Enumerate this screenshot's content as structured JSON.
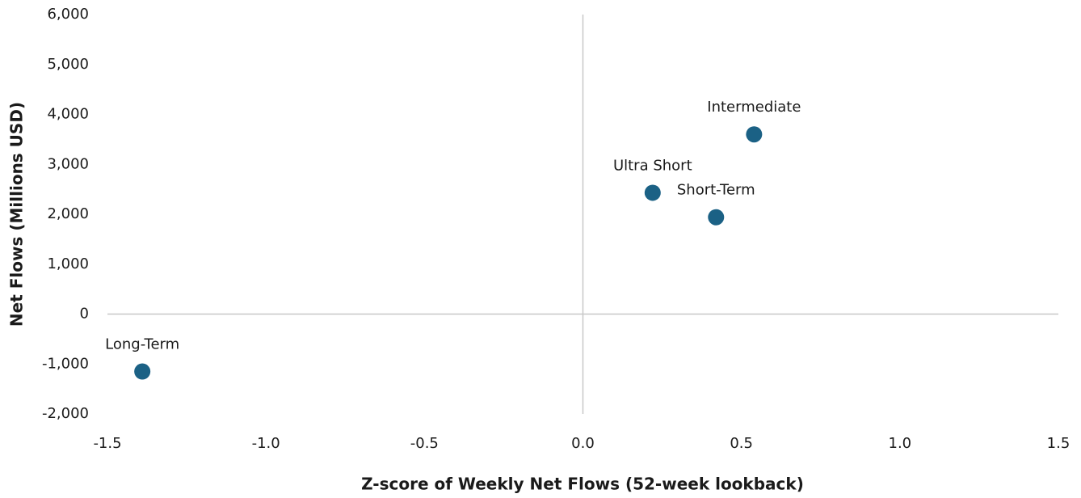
{
  "chart_data": {
    "type": "scatter",
    "x_label": "Z-score of Weekly Net Flows (52-week lookback)",
    "y_label": "Net Flows (Millions USD)",
    "series": [
      {
        "color": "#1b6185",
        "labels": [
          "Intermediate",
          "Ultra Short",
          "Short-Term",
          "Long-Term"
        ],
        "x": [
          0.54,
          0.22,
          0.42,
          -1.39
        ],
        "values": [
          3600,
          2430,
          1940,
          -1150
        ]
      }
    ],
    "xlim": [
      -1.5,
      1.5
    ],
    "xticks": [
      {
        "value": -1.5,
        "label": "-1.5"
      },
      {
        "value": -1,
        "label": "-1.0"
      },
      -0.5,
      {
        "value": 0,
        "label": "0.0"
      },
      0.5,
      {
        "value": 1,
        "label": "1.0"
      },
      1.5
    ],
    "ylim": [
      -2000,
      6000
    ],
    "yticks": [
      {
        "value": -2000,
        "label": "-2,000"
      },
      {
        "value": -1000,
        "label": "-1,000"
      },
      0,
      {
        "value": 1000,
        "label": "1,000"
      },
      {
        "value": 2000,
        "label": "2,000"
      },
      {
        "value": 3000,
        "label": "3,000"
      },
      {
        "value": 4000,
        "label": "4,000"
      },
      {
        "value": 5000,
        "label": "5,000"
      },
      {
        "value": 6000,
        "label": "6,000"
      }
    ]
  }
}
